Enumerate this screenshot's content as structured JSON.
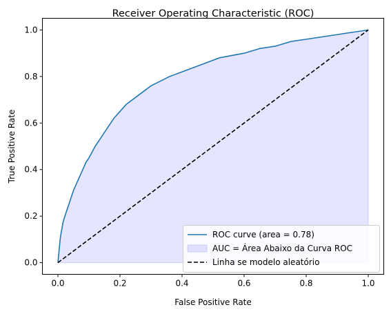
{
  "chart_data": {
    "type": "line",
    "title": "Receiver Operating Characteristic (ROC)",
    "xlabel": "False Positive Rate",
    "ylabel": "True Positive Rate",
    "xlim": [
      -0.05,
      1.05
    ],
    "ylim": [
      -0.05,
      1.05
    ],
    "xticks": [
      "0.0",
      "0.2",
      "0.4",
      "0.6",
      "0.8",
      "1.0"
    ],
    "yticks": [
      "0.0",
      "0.2",
      "0.4",
      "0.6",
      "0.8",
      "1.0"
    ],
    "grid": false,
    "legend_position": "bottom-right",
    "series": [
      {
        "name": "ROC curve (area = 0.78)",
        "style": "solid",
        "color": "#1f77b4",
        "x": [
          0.0,
          0.002,
          0.005,
          0.008,
          0.012,
          0.016,
          0.02,
          0.025,
          0.03,
          0.035,
          0.04,
          0.05,
          0.06,
          0.07,
          0.08,
          0.09,
          0.1,
          0.12,
          0.14,
          0.16,
          0.18,
          0.2,
          0.22,
          0.25,
          0.28,
          0.3,
          0.33,
          0.36,
          0.4,
          0.44,
          0.48,
          0.52,
          0.56,
          0.6,
          0.65,
          0.7,
          0.75,
          0.8,
          0.85,
          0.9,
          0.95,
          1.0
        ],
        "y": [
          0.0,
          0.03,
          0.07,
          0.11,
          0.14,
          0.17,
          0.19,
          0.21,
          0.23,
          0.25,
          0.27,
          0.31,
          0.34,
          0.37,
          0.4,
          0.43,
          0.45,
          0.5,
          0.54,
          0.58,
          0.62,
          0.65,
          0.68,
          0.71,
          0.74,
          0.76,
          0.78,
          0.8,
          0.82,
          0.84,
          0.86,
          0.88,
          0.89,
          0.9,
          0.92,
          0.93,
          0.95,
          0.96,
          0.97,
          0.98,
          0.99,
          1.0
        ]
      },
      {
        "name": "AUC = Área Abaixo da Curva ROC",
        "style": "fill",
        "color": "#0000ff"
      },
      {
        "name": "Linha se modelo aleatório",
        "style": "dashed",
        "color": "#000000",
        "x": [
          0.0,
          1.0
        ],
        "y": [
          0.0,
          1.0
        ]
      }
    ]
  }
}
